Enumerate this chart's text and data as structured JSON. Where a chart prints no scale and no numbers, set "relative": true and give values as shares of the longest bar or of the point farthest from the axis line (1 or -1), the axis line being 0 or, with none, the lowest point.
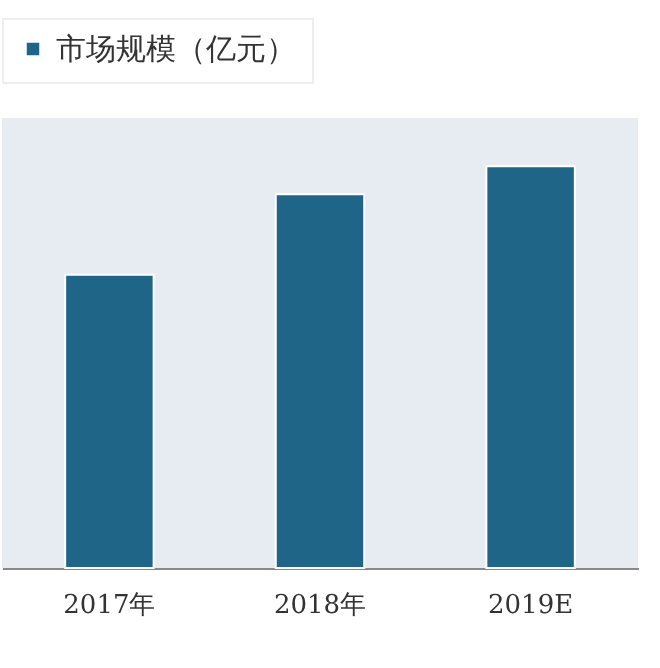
{
  "chart_data": {
    "type": "bar",
    "relative": true,
    "categories": [
      "2017年",
      "2018年",
      "2019E"
    ],
    "series": [
      {
        "name": "市场规模（亿元）",
        "color": "#1f6588",
        "values": [
          0.73,
          0.93,
          1
        ]
      }
    ],
    "legend": "top"
  }
}
